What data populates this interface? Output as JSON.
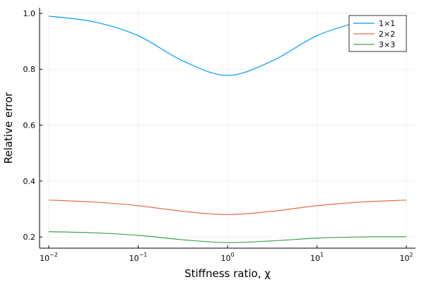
{
  "chart_data": {
    "type": "line",
    "xlabel": "Stiffness ratio, χ",
    "ylabel": "Relative error",
    "x_scale": "log10",
    "xlim": [
      0.01,
      100
    ],
    "ylim": [
      0.16,
      1.02
    ],
    "x_ticks": [
      {
        "value": 0.01,
        "base": "10",
        "exp": "−2"
      },
      {
        "value": 0.1,
        "base": "10",
        "exp": "−1"
      },
      {
        "value": 1,
        "base": "10",
        "exp": "0"
      },
      {
        "value": 10,
        "base": "10",
        "exp": "1"
      },
      {
        "value": 100,
        "base": "10",
        "exp": "2"
      }
    ],
    "y_ticks": [
      {
        "value": 0.2,
        "label": "0.2"
      },
      {
        "value": 0.4,
        "label": "0.4"
      },
      {
        "value": 0.6,
        "label": "0.6"
      },
      {
        "value": 0.8,
        "label": "0.8"
      },
      {
        "value": 1.0,
        "label": "1.0"
      }
    ],
    "grid": true,
    "legend_position": "top-right",
    "x": [
      0.01,
      0.0316,
      0.1,
      0.316,
      1,
      3.16,
      10,
      31.6,
      100
    ],
    "series": [
      {
        "name": "1×1",
        "color": "#009af9",
        "values": [
          0.99,
          0.97,
          0.92,
          0.83,
          0.778,
          0.83,
          0.92,
          0.97,
          0.99
        ]
      },
      {
        "name": "2×2",
        "color": "#e26f46",
        "values": [
          0.332,
          0.325,
          0.312,
          0.292,
          0.28,
          0.292,
          0.312,
          0.325,
          0.332
        ]
      },
      {
        "name": "3×3",
        "color": "#3da44d",
        "values": [
          0.219,
          0.215,
          0.206,
          0.19,
          0.18,
          0.186,
          0.196,
          0.2,
          0.201
        ]
      }
    ]
  }
}
